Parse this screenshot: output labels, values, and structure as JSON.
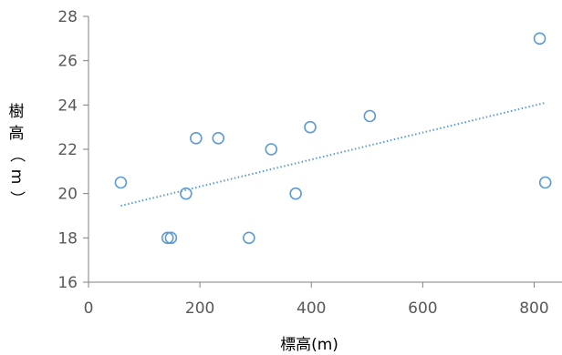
{
  "chart_data": {
    "type": "scatter",
    "title": "",
    "xlabel": "標高(m)",
    "ylabel": "樹高（m）",
    "ylabel_chars": [
      "樹",
      "高",
      "（",
      "m",
      "）"
    ],
    "xlim": [
      0,
      850
    ],
    "ylim": [
      16,
      28
    ],
    "xticks": [
      0,
      200,
      400,
      600,
      800
    ],
    "yticks": [
      16,
      18,
      20,
      22,
      24,
      26,
      28
    ],
    "grid": false,
    "legend": "none",
    "marker_color": "#5B9BD5",
    "trendline": {
      "type": "linear",
      "style": "dotted",
      "color": "#5B9BD5",
      "x_start": 58,
      "x_end": 820,
      "y_start": 19.45,
      "y_end": 24.1
    },
    "points": [
      {
        "x": 58,
        "y": 20.5
      },
      {
        "x": 142,
        "y": 18
      },
      {
        "x": 148,
        "y": 18
      },
      {
        "x": 175,
        "y": 20
      },
      {
        "x": 193,
        "y": 22.5
      },
      {
        "x": 233,
        "y": 22.5
      },
      {
        "x": 288,
        "y": 18
      },
      {
        "x": 328,
        "y": 22
      },
      {
        "x": 372,
        "y": 20
      },
      {
        "x": 398,
        "y": 23
      },
      {
        "x": 505,
        "y": 23.5
      },
      {
        "x": 810,
        "y": 27
      },
      {
        "x": 820,
        "y": 20.5
      }
    ]
  }
}
